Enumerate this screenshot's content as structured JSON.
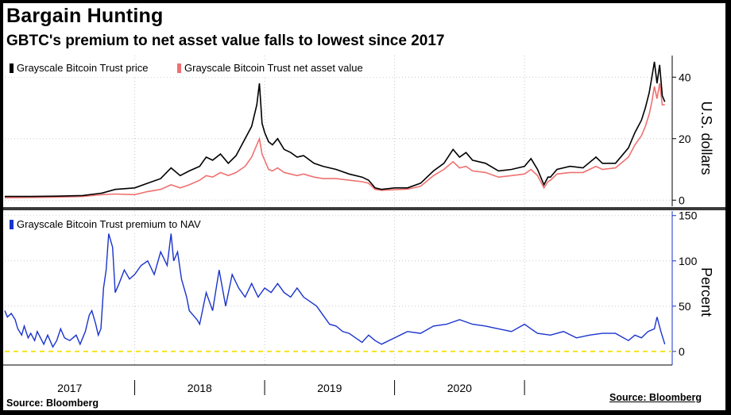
{
  "header": {
    "title": "Bargain Hunting",
    "subtitle": "GBTC's premium to net asset value falls to lowest since 2017"
  },
  "footer": {
    "source_left": "Source: Bloomberg",
    "source_right": "Source: Bloomberg"
  },
  "colors": {
    "price": "#000000",
    "nav": "#f07070",
    "premium": "#1a33cc",
    "zero_line": "#f5e51b",
    "grid": "#c8c8c8"
  },
  "chart_data": [
    {
      "type": "line",
      "title": "",
      "xlabel": "",
      "ylabel": "U.S. dollars",
      "ylim": [
        -2,
        46
      ],
      "yticks": [
        0,
        20,
        40
      ],
      "xlim": [
        2016.0,
        2021.1
      ],
      "legend_location": "top-left",
      "series": [
        {
          "name": "Grayscale Bitcoin Trust price",
          "color_key": "price",
          "x": [
            2016.0,
            2016.2,
            2016.4,
            2016.6,
            2016.75,
            2016.85,
            2017.0,
            2017.1,
            2017.2,
            2017.28,
            2017.35,
            2017.42,
            2017.5,
            2017.55,
            2017.6,
            2017.66,
            2017.72,
            2017.78,
            2017.85,
            2017.9,
            2017.94,
            2017.96,
            2017.98,
            2018.0,
            2018.03,
            2018.06,
            2018.1,
            2018.15,
            2018.2,
            2018.25,
            2018.3,
            2018.38,
            2018.45,
            2018.55,
            2018.65,
            2018.75,
            2018.8,
            2018.85,
            2018.9,
            2019.0,
            2019.1,
            2019.2,
            2019.3,
            2019.38,
            2019.45,
            2019.5,
            2019.55,
            2019.6,
            2019.7,
            2019.8,
            2019.9,
            2020.0,
            2020.05,
            2020.1,
            2020.15,
            2020.18,
            2020.2,
            2020.25,
            2020.35,
            2020.45,
            2020.55,
            2020.6,
            2020.7,
            2020.8,
            2020.85,
            2020.9,
            2020.93,
            2020.96,
            2020.98,
            2021.0,
            2021.02,
            2021.04,
            2021.06,
            2021.08
          ],
          "values": [
            1.2,
            1.2,
            1.3,
            1.5,
            2.3,
            3.5,
            4.0,
            5.5,
            7.0,
            10.5,
            8.0,
            9.5,
            11.0,
            14.0,
            13.0,
            15.0,
            12.0,
            14.5,
            20.0,
            24.0,
            31.0,
            38.0,
            25.0,
            22.0,
            19.0,
            18.0,
            20.0,
            16.5,
            15.5,
            14.0,
            14.5,
            12.0,
            11.0,
            10.0,
            8.5,
            7.5,
            6.5,
            4.0,
            3.5,
            4.0,
            4.0,
            5.5,
            9.5,
            12.0,
            16.5,
            14.0,
            15.5,
            13.0,
            12.0,
            9.5,
            10.0,
            11.0,
            13.5,
            10.0,
            5.0,
            7.5,
            7.5,
            10.0,
            11.0,
            10.5,
            14.0,
            12.0,
            12.0,
            17.0,
            22.0,
            26.0,
            30.0,
            35.0,
            40.0,
            45.0,
            38.0,
            44.0,
            34.0,
            32.0
          ]
        },
        {
          "name": "Grayscale Bitcoin Trust net asset value",
          "color_key": "nav",
          "x": [
            2016.0,
            2016.2,
            2016.4,
            2016.6,
            2016.75,
            2016.85,
            2017.0,
            2017.1,
            2017.2,
            2017.28,
            2017.35,
            2017.42,
            2017.5,
            2017.55,
            2017.6,
            2017.66,
            2017.72,
            2017.78,
            2017.85,
            2017.9,
            2017.94,
            2017.96,
            2017.98,
            2018.0,
            2018.03,
            2018.06,
            2018.1,
            2018.15,
            2018.2,
            2018.25,
            2018.3,
            2018.38,
            2018.45,
            2018.55,
            2018.65,
            2018.75,
            2018.8,
            2018.85,
            2018.9,
            2019.0,
            2019.1,
            2019.2,
            2019.3,
            2019.38,
            2019.45,
            2019.5,
            2019.55,
            2019.6,
            2019.7,
            2019.8,
            2019.9,
            2020.0,
            2020.05,
            2020.1,
            2020.15,
            2020.18,
            2020.2,
            2020.25,
            2020.35,
            2020.45,
            2020.55,
            2020.6,
            2020.7,
            2020.8,
            2020.85,
            2020.9,
            2020.93,
            2020.96,
            2020.98,
            2021.0,
            2021.02,
            2021.04,
            2021.06,
            2021.08
          ],
          "values": [
            0.8,
            0.9,
            1.0,
            1.2,
            1.8,
            2.0,
            1.8,
            2.8,
            3.5,
            5.0,
            4.0,
            5.0,
            6.5,
            8.0,
            7.5,
            9.0,
            8.0,
            9.0,
            11.0,
            14.0,
            18.0,
            20.0,
            15.0,
            13.0,
            10.0,
            9.5,
            10.5,
            9.0,
            8.5,
            8.0,
            8.5,
            7.5,
            7.0,
            7.0,
            6.5,
            6.0,
            5.5,
            3.5,
            3.2,
            3.4,
            3.6,
            4.5,
            8.0,
            10.0,
            12.5,
            10.5,
            11.0,
            9.5,
            9.0,
            7.5,
            8.0,
            8.5,
            10.0,
            8.0,
            4.0,
            6.0,
            6.5,
            8.5,
            9.0,
            9.0,
            11.0,
            10.0,
            10.5,
            14.0,
            18.0,
            21.0,
            24.0,
            28.0,
            32.0,
            37.0,
            33.0,
            38.0,
            31.0,
            31.0
          ]
        }
      ]
    },
    {
      "type": "line",
      "title": "",
      "xlabel": "",
      "ylabel": "Percent",
      "ylim": [
        -15,
        155
      ],
      "yticks": [
        0,
        50,
        100,
        150
      ],
      "xlim": [
        2016.0,
        2021.1
      ],
      "x_tick_labels": [
        "2017",
        "2018",
        "2019",
        "2020"
      ],
      "x_tick_label_positions": [
        2016.5,
        2017.5,
        2018.5,
        2019.5
      ],
      "x_separators": [
        2017.0,
        2018.0,
        2019.0,
        2020.0
      ],
      "reference_line": {
        "y": 0,
        "style": "dashed",
        "color_key": "zero_line"
      },
      "legend_location": "top-left",
      "series": [
        {
          "name": "Grayscale Bitcoin Trust premium to NAV",
          "color_key": "premium",
          "x": [
            2016.0,
            2016.02,
            2016.05,
            2016.08,
            2016.1,
            2016.13,
            2016.15,
            2016.18,
            2016.2,
            2016.23,
            2016.25,
            2016.3,
            2016.33,
            2016.37,
            2016.4,
            2016.43,
            2016.46,
            2016.5,
            2016.55,
            2016.58,
            2016.6,
            2016.62,
            2016.65,
            2016.67,
            2016.7,
            2016.72,
            2016.74,
            2016.76,
            2016.78,
            2016.8,
            2016.83,
            2016.85,
            2016.88,
            2016.92,
            2016.96,
            2017.0,
            2017.05,
            2017.1,
            2017.15,
            2017.2,
            2017.25,
            2017.28,
            2017.3,
            2017.33,
            2017.36,
            2017.4,
            2017.42,
            2017.45,
            2017.48,
            2017.5,
            2017.55,
            2017.6,
            2017.65,
            2017.7,
            2017.75,
            2017.8,
            2017.85,
            2017.9,
            2017.95,
            2018.0,
            2018.05,
            2018.1,
            2018.15,
            2018.2,
            2018.25,
            2018.3,
            2018.35,
            2018.4,
            2018.45,
            2018.5,
            2018.55,
            2018.6,
            2018.65,
            2018.7,
            2018.75,
            2018.8,
            2018.85,
            2018.9,
            2019.0,
            2019.1,
            2019.2,
            2019.3,
            2019.4,
            2019.5,
            2019.6,
            2019.7,
            2019.8,
            2019.9,
            2020.0,
            2020.05,
            2020.1,
            2020.2,
            2020.3,
            2020.4,
            2020.5,
            2020.6,
            2020.7,
            2020.8,
            2020.85,
            2020.9,
            2020.95,
            2021.0,
            2021.02,
            2021.05,
            2021.08
          ],
          "values": [
            45,
            38,
            42,
            35,
            25,
            18,
            28,
            15,
            20,
            12,
            22,
            8,
            18,
            5,
            12,
            25,
            15,
            12,
            18,
            8,
            15,
            22,
            40,
            45,
            30,
            18,
            25,
            70,
            90,
            130,
            115,
            65,
            75,
            90,
            80,
            85,
            95,
            100,
            85,
            110,
            95,
            130,
            100,
            110,
            80,
            60,
            45,
            40,
            35,
            30,
            65,
            45,
            90,
            50,
            85,
            70,
            60,
            75,
            60,
            70,
            65,
            75,
            65,
            60,
            70,
            60,
            55,
            50,
            40,
            30,
            28,
            22,
            20,
            15,
            10,
            18,
            12,
            8,
            15,
            22,
            20,
            28,
            30,
            35,
            30,
            28,
            25,
            22,
            30,
            25,
            20,
            18,
            22,
            15,
            18,
            20,
            20,
            12,
            18,
            15,
            22,
            25,
            38,
            22,
            8
          ]
        }
      ]
    }
  ]
}
